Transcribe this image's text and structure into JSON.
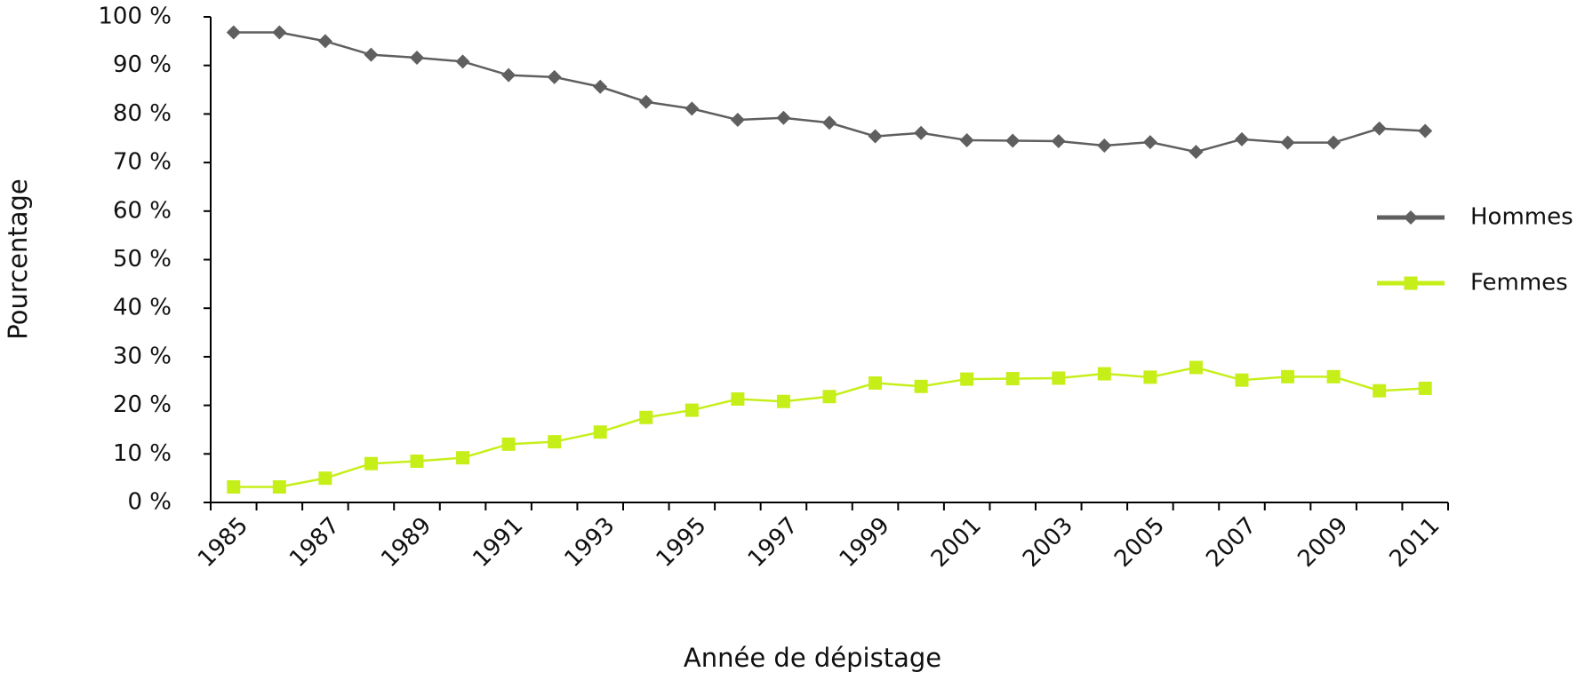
{
  "chart_data": {
    "type": "line",
    "y_label": "Pourcentage",
    "x_label": "Année de dépistage",
    "categories": [
      "1985",
      null,
      "1987",
      null,
      "1989",
      null,
      "1991",
      null,
      "1993",
      null,
      "1995",
      null,
      "1997",
      null,
      "1999",
      null,
      "2001",
      null,
      "2003",
      null,
      "2005",
      null,
      "2007",
      null,
      "2009",
      null,
      "2011"
    ],
    "series": [
      {
        "name": "Hommes",
        "color": "#5f5f5f",
        "marker": "diamond",
        "values": [
          96.8,
          96.8,
          95,
          92.2,
          91.6,
          90.8,
          88,
          87.6,
          85.6,
          82.5,
          81.1,
          78.8,
          79.2,
          78.2,
          75.4,
          76.1,
          74.6,
          74.5,
          74.4,
          73.5,
          74.2,
          72.2,
          74.8,
          74.1,
          74.1,
          77,
          76.5
        ]
      },
      {
        "name": "Femmes",
        "color": "#c6ef1a",
        "marker": "square",
        "values": [
          3.2,
          3.2,
          5,
          8,
          8.5,
          9.2,
          12,
          12.5,
          14.5,
          17.5,
          19,
          21.3,
          20.8,
          21.8,
          24.6,
          23.9,
          25.4,
          25.5,
          25.6,
          26.5,
          25.8,
          27.8,
          25.2,
          25.9,
          25.9,
          23,
          23.5
        ]
      }
    ],
    "ylim": [
      0,
      100
    ],
    "yticks": [
      {
        "value": 0,
        "label": "0 %"
      },
      {
        "value": 10,
        "label": "10 %"
      },
      {
        "value": 20,
        "label": "20 %"
      },
      {
        "value": 30,
        "label": "30 %"
      },
      {
        "value": 40,
        "label": "40 %"
      },
      {
        "value": 50,
        "label": "50 %"
      },
      {
        "value": 60,
        "label": "60 %"
      },
      {
        "value": 70,
        "label": "70 %"
      },
      {
        "value": 80,
        "label": "80 %"
      },
      {
        "value": 90,
        "label": "90 %"
      },
      {
        "value": 100,
        "label": "100 %"
      }
    ],
    "grid": false,
    "legend": "right"
  }
}
